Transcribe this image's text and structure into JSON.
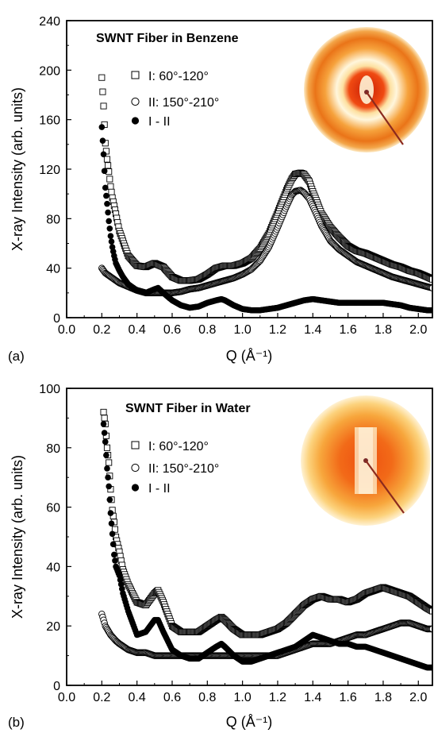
{
  "chart_data": [
    {
      "type": "scatter",
      "panel_label": "(a)",
      "title": "SWNT Fiber in Benzene",
      "xlabel": "Q (Å⁻¹)",
      "ylabel": "X-ray Intensity (arb. units)",
      "xlim": [
        0.0,
        2.08
      ],
      "ylim": [
        0,
        240
      ],
      "xticks": [
        "0.0",
        "0.2",
        "0.4",
        "0.6",
        "0.8",
        "1.0",
        "1.2",
        "1.4",
        "1.6",
        "1.8",
        "2.0"
      ],
      "yticks": [
        "0",
        "40",
        "80",
        "120",
        "160",
        "200",
        "240"
      ],
      "grid": false,
      "legend_position": "top-left",
      "inset": "diffraction-pattern-benzene",
      "series": [
        {
          "name": "I:   60°-120°",
          "marker": "open-square",
          "x": [
            0.2,
            0.21,
            0.22,
            0.23,
            0.24,
            0.25,
            0.26,
            0.28,
            0.3,
            0.35,
            0.4,
            0.45,
            0.5,
            0.55,
            0.6,
            0.65,
            0.7,
            0.75,
            0.8,
            0.85,
            0.9,
            0.95,
            1.0,
            1.05,
            1.1,
            1.15,
            1.2,
            1.25,
            1.28,
            1.3,
            1.33,
            1.35,
            1.38,
            1.4,
            1.45,
            1.5,
            1.55,
            1.6,
            1.65,
            1.7,
            1.75,
            1.8,
            1.85,
            1.9,
            1.95,
            2.0,
            2.05,
            2.08
          ],
          "y": [
            194,
            171,
            141,
            128,
            118,
            106,
            97,
            84,
            70,
            50,
            42,
            41,
            44,
            41,
            33,
            30,
            30,
            31,
            35,
            40,
            42,
            42,
            44,
            48,
            56,
            68,
            85,
            103,
            112,
            116,
            117,
            116,
            110,
            102,
            84,
            73,
            65,
            58,
            54,
            52,
            49,
            46,
            43,
            41,
            38,
            36,
            33,
            31
          ]
        },
        {
          "name": "II: 150°-210°",
          "marker": "open-circle",
          "x": [
            0.2,
            0.22,
            0.25,
            0.28,
            0.3,
            0.35,
            0.4,
            0.45,
            0.5,
            0.55,
            0.6,
            0.65,
            0.7,
            0.75,
            0.8,
            0.85,
            0.9,
            0.95,
            1.0,
            1.05,
            1.1,
            1.15,
            1.2,
            1.25,
            1.28,
            1.3,
            1.33,
            1.35,
            1.38,
            1.4,
            1.45,
            1.5,
            1.55,
            1.6,
            1.65,
            1.7,
            1.75,
            1.8,
            1.85,
            1.9,
            1.95,
            2.0,
            2.05,
            2.08
          ],
          "y": [
            40,
            36,
            33,
            30,
            28,
            25,
            22,
            20,
            20,
            20,
            20,
            21,
            23,
            24,
            26,
            28,
            30,
            32,
            35,
            39,
            46,
            57,
            73,
            90,
            99,
            102,
            103,
            101,
            96,
            90,
            74,
            62,
            55,
            50,
            45,
            42,
            39,
            36,
            33,
            31,
            29,
            27,
            25,
            24
          ]
        },
        {
          "name": "I - II",
          "marker": "filled-circle",
          "x": [
            0.2,
            0.21,
            0.22,
            0.23,
            0.24,
            0.25,
            0.26,
            0.27,
            0.28,
            0.3,
            0.32,
            0.35,
            0.4,
            0.45,
            0.5,
            0.52,
            0.55,
            0.6,
            0.65,
            0.7,
            0.75,
            0.8,
            0.85,
            0.88,
            0.9,
            0.95,
            1.0,
            1.05,
            1.1,
            1.15,
            1.2,
            1.25,
            1.3,
            1.35,
            1.4,
            1.45,
            1.5,
            1.55,
            1.6,
            1.65,
            1.7,
            1.75,
            1.8,
            1.85,
            1.9,
            1.95,
            2.0,
            2.05,
            2.08
          ],
          "y": [
            154,
            132,
            105,
            92,
            78,
            66,
            57,
            50,
            44,
            38,
            33,
            27,
            22,
            20,
            23,
            24,
            20,
            14,
            10,
            8,
            9,
            12,
            14,
            15,
            14,
            10,
            7,
            6,
            6,
            7,
            8,
            10,
            12,
            14,
            15,
            14,
            13,
            12,
            12,
            12,
            12,
            12,
            12,
            11,
            10,
            8,
            7,
            6,
            6
          ]
        }
      ]
    },
    {
      "type": "scatter",
      "panel_label": "(b)",
      "title": "SWNT Fiber in Water",
      "xlabel": "Q (Å⁻¹)",
      "ylabel": "X-ray Intensity (arb. units)",
      "xlim": [
        0.0,
        2.08
      ],
      "ylim": [
        0,
        100
      ],
      "xticks": [
        "0.0",
        "0.2",
        "0.4",
        "0.6",
        "0.8",
        "1.0",
        "1.2",
        "1.4",
        "1.6",
        "1.8",
        "2.0"
      ],
      "yticks": [
        "0",
        "20",
        "40",
        "60",
        "80",
        "100"
      ],
      "grid": false,
      "legend_position": "top-center",
      "inset": "diffraction-pattern-water",
      "series": [
        {
          "name": "I:   60°-120°",
          "marker": "open-square",
          "x": [
            0.21,
            0.22,
            0.23,
            0.24,
            0.25,
            0.26,
            0.27,
            0.28,
            0.3,
            0.32,
            0.35,
            0.4,
            0.45,
            0.5,
            0.52,
            0.55,
            0.6,
            0.65,
            0.7,
            0.75,
            0.8,
            0.85,
            0.88,
            0.9,
            0.95,
            1.0,
            1.05,
            1.1,
            1.15,
            1.2,
            1.25,
            1.3,
            1.35,
            1.4,
            1.45,
            1.5,
            1.55,
            1.6,
            1.65,
            1.7,
            1.75,
            1.8,
            1.85,
            1.9,
            1.95,
            2.0,
            2.05,
            2.08
          ],
          "y": [
            92,
            88,
            80,
            75,
            66,
            59,
            55,
            50,
            45,
            39,
            34,
            28,
            27,
            31,
            32,
            28,
            20,
            18,
            18,
            18,
            20,
            22,
            23,
            22,
            19,
            17,
            17,
            17,
            18,
            19,
            21,
            24,
            27,
            29,
            30,
            29,
            29,
            28,
            29,
            31,
            32,
            33,
            32,
            31,
            30,
            28,
            26,
            25
          ]
        },
        {
          "name": "II: 150°-210°",
          "marker": "open-circle",
          "x": [
            0.2,
            0.22,
            0.25,
            0.28,
            0.3,
            0.35,
            0.4,
            0.45,
            0.5,
            0.55,
            0.6,
            0.65,
            0.7,
            0.75,
            0.8,
            0.85,
            0.9,
            0.95,
            1.0,
            1.05,
            1.1,
            1.15,
            1.2,
            1.25,
            1.3,
            1.35,
            1.4,
            1.45,
            1.5,
            1.55,
            1.6,
            1.65,
            1.7,
            1.75,
            1.8,
            1.85,
            1.9,
            1.95,
            2.0,
            2.05,
            2.08
          ],
          "y": [
            24,
            20,
            17,
            15,
            14,
            12,
            11,
            11,
            10,
            10,
            10,
            10,
            10,
            10,
            10,
            10,
            10,
            10,
            10,
            10,
            10,
            10,
            10,
            11,
            12,
            13,
            14,
            14,
            14,
            15,
            16,
            17,
            17,
            18,
            19,
            20,
            21,
            21,
            20,
            19,
            19
          ]
        },
        {
          "name": "I - II",
          "marker": "filled-circle",
          "x": [
            0.21,
            0.22,
            0.23,
            0.24,
            0.25,
            0.26,
            0.27,
            0.28,
            0.3,
            0.32,
            0.35,
            0.4,
            0.45,
            0.5,
            0.52,
            0.55,
            0.6,
            0.65,
            0.7,
            0.75,
            0.8,
            0.85,
            0.88,
            0.9,
            0.95,
            1.0,
            1.05,
            1.1,
            1.15,
            1.2,
            1.25,
            1.3,
            1.35,
            1.4,
            1.45,
            1.5,
            1.55,
            1.6,
            1.65,
            1.7,
            1.75,
            1.8,
            1.85,
            1.9,
            1.95,
            2.0,
            2.05,
            2.08
          ],
          "y": [
            88,
            82,
            73,
            67,
            58,
            51,
            44,
            40,
            37,
            31,
            25,
            17,
            18,
            22,
            22,
            18,
            12,
            10,
            9,
            9,
            11,
            13,
            14,
            13,
            10,
            8,
            8,
            9,
            10,
            11,
            12,
            13,
            15,
            17,
            16,
            15,
            14,
            14,
            13,
            13,
            12,
            11,
            10,
            9,
            8,
            7,
            6,
            6
          ]
        }
      ]
    }
  ]
}
